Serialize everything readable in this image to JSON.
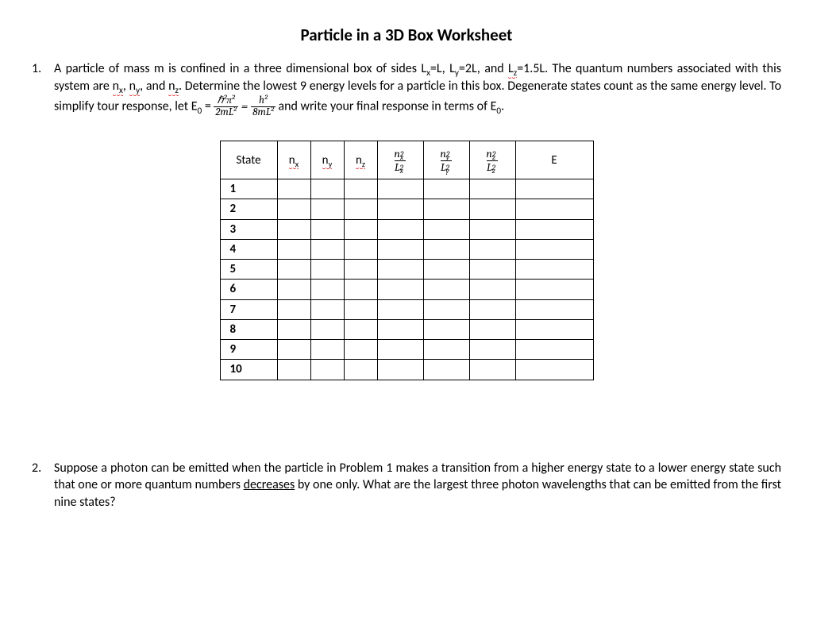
{
  "title": "Particle in a  3D Box Worksheet",
  "p1": {
    "num": "1.",
    "t1": "A particle of mass m is confined in a three dimensional box of sides L",
    "lx": "x",
    "leq1": "=L, L",
    "ly": "y",
    "leq2": "=2L, and ",
    "lz": "L",
    "lzsub": "z",
    "leq3": "=1.5L. The quantum numbers associated with this system are ",
    "nx": "n",
    "nxsub": "x",
    "comma1": ", ",
    "ny": "n",
    "nysub": "y",
    "comma2": ", and ",
    "nz": "n",
    "nzsub": "z",
    "t2": ". Determine the lowest 9 energy levels for a particle in this box. Degenerate states count as the same energy level.  To simplify tour response, let E",
    "e0sub": "0",
    "eq": " = ",
    "frac1_num": "ℏ²π²",
    "frac1_den": "2mL²",
    "eq2": " = ",
    "frac2_num": "h²",
    "frac2_den": "8mL²",
    "t3": " and write your final response in terms of E",
    "e0sub2": "0",
    "t4": "."
  },
  "table": {
    "headers": {
      "state": "State",
      "nx": "n",
      "nx_sub": "x",
      "ny": "n",
      "ny_sub": "y",
      "nz": "n",
      "nz_sub": "z",
      "rx_top_n": "n",
      "rx_top_sub": "x",
      "rx_top_sup": "2",
      "rx_bot_L": "L",
      "rx_bot_sub": "x",
      "rx_bot_sup": "2",
      "ry_top_n": "n",
      "ry_top_sub": "y",
      "ry_top_sup": "2",
      "ry_bot_L": "L",
      "ry_bot_sub": "y",
      "ry_bot_sup": "2",
      "rz_top_n": "n",
      "rz_top_sub": "z",
      "rz_top_sup": "2",
      "rz_bot_L": "L",
      "rz_bot_sub": "z",
      "rz_bot_sup": "2",
      "E": "E"
    },
    "rows": [
      "1",
      "2",
      "3",
      "4",
      "5",
      "6",
      "7",
      "8",
      "9",
      "10"
    ]
  },
  "p2": {
    "num": "2.",
    "t1": "Suppose a photon can be emitted when the particle in Problem 1 makes a transition from a higher energy state to a lower energy state such that one or more quantum numbers ",
    "ul": "decreases",
    "t2": " by one only.  What are the largest three photon wavelengths that can be emitted from the first nine states?"
  },
  "style": {
    "page_bg": "#ffffff",
    "text_color": "#000000",
    "squiggle_color": "#d00000",
    "border_color": "#000000"
  }
}
